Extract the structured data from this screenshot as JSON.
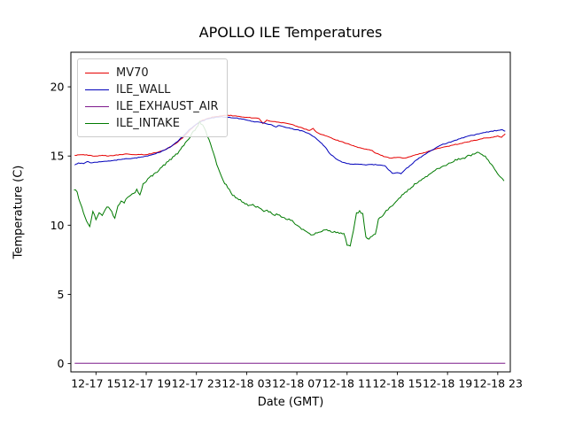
{
  "chart_data": {
    "type": "line",
    "title": "APOLLO ILE Temperatures",
    "xlabel": "Date (GMT)",
    "ylabel": "Temperature (C)",
    "x_unit": "hours after 12-17 12:00 GMT",
    "xlim": [
      1.0,
      36.0
    ],
    "ylim": [
      -0.6,
      22.5
    ],
    "grid": false,
    "legend_position": "upper left",
    "y_ticks": [
      0,
      5,
      10,
      15,
      20
    ],
    "x_ticks": [
      {
        "t": 3,
        "label": "12-17 15"
      },
      {
        "t": 7,
        "label": "12-17 19"
      },
      {
        "t": 11,
        "label": "12-17 23"
      },
      {
        "t": 15,
        "label": "12-18 03"
      },
      {
        "t": 19,
        "label": "12-18 07"
      },
      {
        "t": 23,
        "label": "12-18 11"
      },
      {
        "t": 27,
        "label": "12-18 15"
      },
      {
        "t": 31,
        "label": "12-18 19"
      },
      {
        "t": 35,
        "label": "12-18 23"
      }
    ],
    "series": [
      {
        "name": "MV70",
        "color": "#e60000",
        "jitter": 0.025,
        "points": [
          [
            1.3,
            15.05
          ],
          [
            2,
            15.1
          ],
          [
            2.5,
            15.05
          ],
          [
            3,
            15.0
          ],
          [
            3.5,
            15.05
          ],
          [
            4,
            15.0
          ],
          [
            4.5,
            15.05
          ],
          [
            5,
            15.1
          ],
          [
            5.5,
            15.15
          ],
          [
            6,
            15.1
          ],
          [
            6.5,
            15.1
          ],
          [
            7,
            15.1
          ],
          [
            7.5,
            15.2
          ],
          [
            8,
            15.3
          ],
          [
            8.5,
            15.45
          ],
          [
            9,
            15.7
          ],
          [
            9.5,
            16.0
          ],
          [
            10,
            16.4
          ],
          [
            10.5,
            16.9
          ],
          [
            11,
            17.3
          ],
          [
            11.5,
            17.6
          ],
          [
            12,
            17.75
          ],
          [
            12.5,
            17.85
          ],
          [
            13,
            17.9
          ],
          [
            13.5,
            17.95
          ],
          [
            14,
            17.9
          ],
          [
            14.5,
            17.85
          ],
          [
            15,
            17.8
          ],
          [
            15.5,
            17.75
          ],
          [
            16,
            17.7
          ],
          [
            16.3,
            17.35
          ],
          [
            16.6,
            17.6
          ],
          [
            17,
            17.5
          ],
          [
            17.5,
            17.45
          ],
          [
            18,
            17.4
          ],
          [
            18.5,
            17.3
          ],
          [
            19,
            17.15
          ],
          [
            19.5,
            17.0
          ],
          [
            20,
            16.85
          ],
          [
            20.3,
            17.0
          ],
          [
            20.6,
            16.7
          ],
          [
            21,
            16.55
          ],
          [
            21.5,
            16.4
          ],
          [
            22,
            16.2
          ],
          [
            22.5,
            16.05
          ],
          [
            23,
            15.9
          ],
          [
            23.5,
            15.75
          ],
          [
            24,
            15.6
          ],
          [
            24.5,
            15.5
          ],
          [
            25,
            15.4
          ],
          [
            25.3,
            15.2
          ],
          [
            25.7,
            15.05
          ],
          [
            26,
            14.95
          ],
          [
            26.5,
            14.85
          ],
          [
            27,
            14.9
          ],
          [
            27.5,
            14.85
          ],
          [
            28,
            14.95
          ],
          [
            28.5,
            15.1
          ],
          [
            29,
            15.2
          ],
          [
            29.5,
            15.35
          ],
          [
            30,
            15.5
          ],
          [
            30.5,
            15.6
          ],
          [
            31,
            15.7
          ],
          [
            31.5,
            15.8
          ],
          [
            32,
            15.9
          ],
          [
            32.5,
            16.0
          ],
          [
            33,
            16.1
          ],
          [
            33.5,
            16.2
          ],
          [
            34,
            16.3
          ],
          [
            34.5,
            16.35
          ],
          [
            35,
            16.45
          ],
          [
            35.3,
            16.35
          ],
          [
            35.6,
            16.6
          ]
        ]
      },
      {
        "name": "ILE_WALL",
        "color": "#0000bb",
        "jitter": 0.025,
        "points": [
          [
            1.3,
            14.35
          ],
          [
            1.6,
            14.5
          ],
          [
            2,
            14.45
          ],
          [
            2.3,
            14.6
          ],
          [
            2.6,
            14.5
          ],
          [
            3,
            14.55
          ],
          [
            3.5,
            14.6
          ],
          [
            4,
            14.65
          ],
          [
            4.5,
            14.7
          ],
          [
            5,
            14.75
          ],
          [
            5.5,
            14.8
          ],
          [
            6,
            14.85
          ],
          [
            6.5,
            14.9
          ],
          [
            7,
            15.0
          ],
          [
            7.5,
            15.1
          ],
          [
            8,
            15.25
          ],
          [
            8.5,
            15.45
          ],
          [
            9,
            15.7
          ],
          [
            9.5,
            16.05
          ],
          [
            10,
            16.5
          ],
          [
            10.5,
            16.95
          ],
          [
            11,
            17.3
          ],
          [
            11.5,
            17.55
          ],
          [
            12,
            17.7
          ],
          [
            12.5,
            17.8
          ],
          [
            13,
            17.85
          ],
          [
            13.5,
            17.8
          ],
          [
            14,
            17.75
          ],
          [
            14.5,
            17.7
          ],
          [
            15,
            17.6
          ],
          [
            15.5,
            17.5
          ],
          [
            16,
            17.45
          ],
          [
            16.5,
            17.35
          ],
          [
            17,
            17.25
          ],
          [
            17.3,
            17.1
          ],
          [
            17.6,
            17.2
          ],
          [
            18,
            17.1
          ],
          [
            18.5,
            17.0
          ],
          [
            19,
            16.9
          ],
          [
            19.5,
            16.8
          ],
          [
            20,
            16.6
          ],
          [
            20.5,
            16.3
          ],
          [
            21,
            15.9
          ],
          [
            21.3,
            15.6
          ],
          [
            21.6,
            15.2
          ],
          [
            22,
            14.9
          ],
          [
            22.3,
            14.7
          ],
          [
            22.6,
            14.55
          ],
          [
            23,
            14.45
          ],
          [
            23.5,
            14.4
          ],
          [
            24,
            14.4
          ],
          [
            24.5,
            14.35
          ],
          [
            25,
            14.4
          ],
          [
            25.5,
            14.35
          ],
          [
            26,
            14.3
          ],
          [
            26.3,
            14.0
          ],
          [
            26.6,
            13.75
          ],
          [
            27,
            13.8
          ],
          [
            27.3,
            13.72
          ],
          [
            27.6,
            14.0
          ],
          [
            28,
            14.3
          ],
          [
            28.5,
            14.7
          ],
          [
            29,
            15.0
          ],
          [
            29.5,
            15.3
          ],
          [
            30,
            15.55
          ],
          [
            30.5,
            15.8
          ],
          [
            31,
            15.95
          ],
          [
            31.5,
            16.1
          ],
          [
            32,
            16.25
          ],
          [
            32.5,
            16.4
          ],
          [
            33,
            16.5
          ],
          [
            33.5,
            16.6
          ],
          [
            34,
            16.7
          ],
          [
            34.5,
            16.8
          ],
          [
            35,
            16.85
          ],
          [
            35.3,
            16.9
          ],
          [
            35.6,
            16.8
          ]
        ]
      },
      {
        "name": "ILE_EXHAUST_AIR",
        "color": "#7d1a8c",
        "jitter": 0,
        "points": [
          [
            1.3,
            0.03
          ],
          [
            35.6,
            0.03
          ]
        ]
      },
      {
        "name": "ILE_INTAKE",
        "color": "#007a00",
        "jitter": 0.1,
        "points": [
          [
            1.25,
            12.55
          ],
          [
            1.5,
            12.4
          ],
          [
            1.75,
            11.6
          ],
          [
            2,
            10.9
          ],
          [
            2.25,
            10.3
          ],
          [
            2.5,
            9.9
          ],
          [
            2.75,
            11
          ],
          [
            3,
            10.4
          ],
          [
            3.25,
            10.9
          ],
          [
            3.5,
            10.7
          ],
          [
            3.75,
            11.15
          ],
          [
            4,
            11.3
          ],
          [
            4.25,
            11
          ],
          [
            4.5,
            10.5
          ],
          [
            4.75,
            11.4
          ],
          [
            5,
            11.75
          ],
          [
            5.25,
            11.6
          ],
          [
            5.5,
            12
          ],
          [
            5.75,
            12.15
          ],
          [
            6,
            12.3
          ],
          [
            6.25,
            12.6
          ],
          [
            6.5,
            12.2
          ],
          [
            6.75,
            13
          ],
          [
            7,
            13.15
          ],
          [
            7.25,
            13.45
          ],
          [
            7.5,
            13.55
          ],
          [
            7.75,
            13.8
          ],
          [
            8,
            13.95
          ],
          [
            8.25,
            14.2
          ],
          [
            8.5,
            14.35
          ],
          [
            8.75,
            14.6
          ],
          [
            9,
            14.75
          ],
          [
            9.25,
            15
          ],
          [
            9.5,
            15.15
          ],
          [
            9.75,
            15.5
          ],
          [
            10,
            15.75
          ],
          [
            10.25,
            16.1
          ],
          [
            10.5,
            16.35
          ],
          [
            10.75,
            16.8
          ],
          [
            11,
            17.05
          ],
          [
            11.25,
            17.5
          ],
          [
            11.5,
            17.25
          ],
          [
            11.75,
            16.8
          ],
          [
            12,
            16.2
          ],
          [
            12.25,
            15.5
          ],
          [
            12.5,
            14.8
          ],
          [
            12.75,
            14.1
          ],
          [
            13,
            13.5
          ],
          [
            13.25,
            13
          ],
          [
            13.5,
            12.7
          ],
          [
            13.75,
            12.35
          ],
          [
            14,
            12.15
          ],
          [
            14.25,
            11.95
          ],
          [
            14.5,
            11.85
          ],
          [
            14.75,
            11.65
          ],
          [
            15,
            11.55
          ],
          [
            15.25,
            11.45
          ],
          [
            15.5,
            11.5
          ],
          [
            15.75,
            11.3
          ],
          [
            16,
            11.25
          ],
          [
            16.25,
            11.1
          ],
          [
            16.5,
            11.05
          ],
          [
            16.75,
            10.95
          ],
          [
            17,
            10.85
          ],
          [
            17.25,
            10.7
          ],
          [
            17.5,
            10.75
          ],
          [
            17.75,
            10.6
          ],
          [
            18,
            10.55
          ],
          [
            18.25,
            10.4
          ],
          [
            18.5,
            10.35
          ],
          [
            18.75,
            10.2
          ],
          [
            19,
            10
          ],
          [
            19.25,
            9.85
          ],
          [
            19.5,
            9.7
          ],
          [
            19.75,
            9.55
          ],
          [
            20,
            9.4
          ],
          [
            20.25,
            9.3
          ],
          [
            20.5,
            9.45
          ],
          [
            20.75,
            9.5
          ],
          [
            21,
            9.55
          ],
          [
            21.25,
            9.65
          ],
          [
            21.5,
            9.6
          ],
          [
            21.75,
            9.5
          ],
          [
            22,
            9.55
          ],
          [
            22.25,
            9.5
          ],
          [
            22.5,
            9.45
          ],
          [
            22.75,
            9.4
          ],
          [
            23,
            8.55
          ],
          [
            23.25,
            8.5
          ],
          [
            23.5,
            9.6
          ],
          [
            23.75,
            10.9
          ],
          [
            24,
            11.05
          ],
          [
            24.25,
            10.85
          ],
          [
            24.5,
            9.15
          ],
          [
            24.75,
            9
          ],
          [
            25,
            9.2
          ],
          [
            25.25,
            9.35
          ],
          [
            25.5,
            10.45
          ],
          [
            25.75,
            10.6
          ],
          [
            26,
            10.9
          ],
          [
            26.25,
            11.1
          ],
          [
            26.5,
            11.35
          ],
          [
            26.75,
            11.55
          ],
          [
            27,
            11.8
          ],
          [
            27.25,
            12
          ],
          [
            27.5,
            12.25
          ],
          [
            27.75,
            12.4
          ],
          [
            28,
            12.6
          ],
          [
            28.25,
            12.8
          ],
          [
            28.5,
            13
          ],
          [
            28.75,
            13.2
          ],
          [
            29,
            13.35
          ],
          [
            29.25,
            13.5
          ],
          [
            29.5,
            13.65
          ],
          [
            29.75,
            13.8
          ],
          [
            30,
            13.95
          ],
          [
            30.25,
            14.1
          ],
          [
            30.5,
            14.2
          ],
          [
            30.75,
            14.3
          ],
          [
            31,
            14.4
          ],
          [
            31.25,
            14.5
          ],
          [
            31.5,
            14.6
          ],
          [
            31.75,
            14.7
          ],
          [
            32,
            14.75
          ],
          [
            32.25,
            14.85
          ],
          [
            32.5,
            14.95
          ],
          [
            32.75,
            15.05
          ],
          [
            33,
            15.15
          ],
          [
            33.25,
            15.2
          ],
          [
            33.5,
            15.25
          ],
          [
            33.75,
            15.1
          ],
          [
            34,
            15
          ],
          [
            34.25,
            14.7
          ],
          [
            34.5,
            14.4
          ],
          [
            34.75,
            14.05
          ],
          [
            35,
            13.7
          ],
          [
            35.25,
            13.45
          ],
          [
            35.5,
            13.2
          ]
        ]
      }
    ]
  }
}
